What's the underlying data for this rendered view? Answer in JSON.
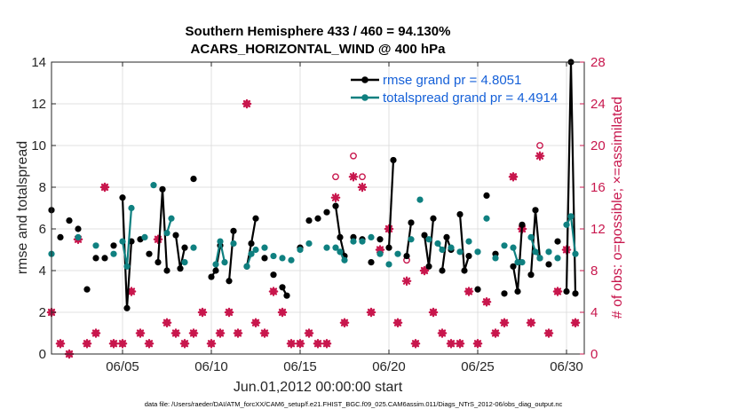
{
  "chart_data": {
    "type": "line",
    "title": "Southern Hemisphere 433 / 460 = 94.130%",
    "subtitle": "ACARS_HORIZONTAL_WIND @ 400 hPa",
    "xlabel": "Jun.01,2012 00:00:00 start",
    "ylabel": "rmse and totalspread",
    "ylabel_right": "# of obs: o=possible; ×=assimilated",
    "xlim": [
      1,
      31
    ],
    "ylim": [
      0,
      14
    ],
    "ylim_right": [
      0,
      28
    ],
    "grid": true,
    "x_ticks": [
      5,
      10,
      15,
      20,
      25,
      30
    ],
    "x_tick_labels": [
      "06/05",
      "06/10",
      "06/15",
      "06/20",
      "06/25",
      "06/30"
    ],
    "y_ticks": [
      0,
      2,
      4,
      6,
      8,
      10,
      12,
      14
    ],
    "y_tick_labels": [
      "0",
      "2",
      "4",
      "6",
      "8",
      "10",
      "12",
      "14"
    ],
    "y_ticks_right": [
      0,
      4,
      8,
      12,
      16,
      20,
      24,
      28
    ],
    "y_tick_labels_right": [
      "0",
      "4",
      "8",
      "12",
      "16",
      "20",
      "24",
      "28"
    ],
    "legend_position": "top-right",
    "series": [
      {
        "name": "rmse grand pr = 4.8051",
        "color": "#000000",
        "marker": "filled-circle",
        "x": [
          1.0,
          1.5,
          2.0,
          2.5,
          3.0,
          3.5,
          4.0,
          4.5,
          5.0,
          5.25,
          5.5,
          6.0,
          6.5,
          7.0,
          7.25,
          7.5,
          8.0,
          8.25,
          8.5,
          9.0,
          10.0,
          10.25,
          10.5,
          11.0,
          11.25,
          12.0,
          12.25,
          12.5,
          13.0,
          13.5,
          14.0,
          14.25,
          15.0,
          15.5,
          16.0,
          16.5,
          17.0,
          17.25,
          17.5,
          18.0,
          18.5,
          19.0,
          19.5,
          20.0,
          20.25,
          21.0,
          21.25,
          22.0,
          22.25,
          22.5,
          23.0,
          23.25,
          23.5,
          24.0,
          24.25,
          24.5,
          25.0,
          25.5,
          26.0,
          26.5,
          27.0,
          27.25,
          27.5,
          28.0,
          28.25,
          28.5,
          29.0,
          29.5,
          30.0,
          30.25,
          30.5
        ],
        "values": [
          6.9,
          5.6,
          6.4,
          6.0,
          3.1,
          4.6,
          4.6,
          5.2,
          7.5,
          2.2,
          5.4,
          5.5,
          4.8,
          4.4,
          7.9,
          4.0,
          5.7,
          4.1,
          5.1,
          8.4,
          3.7,
          4.0,
          5.2,
          3.5,
          5.9,
          4.2,
          5.3,
          6.5,
          4.6,
          3.8,
          3.2,
          2.8,
          5.1,
          6.4,
          6.5,
          6.8,
          7.1,
          5.6,
          4.7,
          5.6,
          5.5,
          4.4,
          5.5,
          5.1,
          9.3,
          4.7,
          6.3,
          5.7,
          4.2,
          6.5,
          4.0,
          5.6,
          5.0,
          6.7,
          4.0,
          4.7,
          3.1,
          7.6,
          4.8,
          2.9,
          4.2,
          3.0,
          6.2,
          3.8,
          6.9,
          4.6,
          4.3,
          5.4,
          3.0,
          14.0,
          2.9
        ]
      },
      {
        "name": "totalspread grand pr = 4.4914",
        "color": "#0f8080",
        "marker": "filled-circle",
        "x": [
          1.0,
          2.5,
          3.5,
          4.5,
          5.0,
          5.25,
          5.5,
          6.25,
          6.75,
          7.5,
          7.75,
          8.5,
          9.0,
          10.25,
          10.5,
          10.75,
          11.25,
          12.0,
          12.25,
          12.5,
          13.0,
          13.5,
          14.0,
          14.5,
          15.0,
          15.5,
          16.5,
          17.0,
          17.25,
          17.5,
          18.0,
          18.5,
          19.0,
          19.5,
          20.0,
          20.5,
          21.25,
          21.75,
          22.25,
          22.75,
          23.0,
          23.5,
          24.0,
          24.5,
          25.0,
          25.5,
          26.0,
          26.5,
          27.0,
          27.25,
          27.5,
          28.0,
          28.25,
          28.5,
          29.0,
          29.5,
          30.0,
          30.25,
          30.5
        ],
        "values": [
          4.8,
          5.6,
          5.2,
          4.8,
          5.4,
          4.2,
          7.0,
          5.6,
          8.1,
          5.8,
          6.5,
          4.4,
          5.1,
          4.3,
          5.4,
          4.4,
          5.3,
          4.2,
          4.8,
          5.0,
          5.1,
          4.7,
          4.6,
          4.5,
          5.0,
          5.3,
          5.1,
          5.1,
          4.9,
          4.5,
          5.4,
          5.4,
          5.6,
          4.8,
          4.3,
          4.8,
          5.5,
          7.4,
          5.5,
          5.3,
          5.0,
          5.1,
          4.9,
          5.4,
          4.9,
          6.5,
          4.6,
          5.2,
          5.1,
          4.4,
          4.4,
          5.6,
          4.9,
          4.6,
          4.9,
          4.6,
          6.2,
          6.6,
          4.8
        ]
      },
      {
        "name": "obs possible",
        "axis": "right",
        "color": "#c8174d",
        "marker": "open-circle",
        "x": [
          1.0,
          1.5,
          2.0,
          2.5,
          3.0,
          3.5,
          4.0,
          4.5,
          5.0,
          5.5,
          6.0,
          6.5,
          7.0,
          7.5,
          8.0,
          8.5,
          9.0,
          9.5,
          10.0,
          10.5,
          11.0,
          11.5,
          12.0,
          12.5,
          13.0,
          13.5,
          14.0,
          14.5,
          15.0,
          15.5,
          16.0,
          16.5,
          17.0,
          17.5,
          18.0,
          18.5,
          19.0,
          19.5,
          20.0,
          20.5,
          21.0,
          21.5,
          22.0,
          22.5,
          23.0,
          23.5,
          24.0,
          24.5,
          25.0,
          25.5,
          26.0,
          26.5,
          27.0,
          27.5,
          28.0,
          28.5,
          29.0,
          29.5,
          30.0,
          30.5
        ],
        "values": [
          4,
          1,
          0,
          11,
          1,
          2,
          16,
          1,
          1,
          6,
          2,
          1,
          11,
          3,
          2,
          1,
          2,
          4,
          1,
          2,
          4,
          2,
          24,
          3,
          2,
          6,
          4,
          1,
          1,
          2,
          1,
          1,
          17,
          3,
          19,
          17,
          4,
          10,
          12,
          3,
          9,
          1,
          8,
          4,
          2,
          1,
          1,
          6,
          1,
          5,
          2,
          3,
          17,
          12,
          3,
          20,
          2,
          6,
          10,
          3
        ]
      },
      {
        "name": "obs assimilated",
        "axis": "right",
        "color": "#c8174d",
        "marker": "asterisk",
        "x": [
          1.0,
          1.5,
          2.0,
          2.5,
          3.0,
          3.5,
          4.0,
          4.5,
          5.0,
          5.5,
          6.0,
          6.5,
          7.0,
          7.5,
          8.0,
          8.5,
          9.0,
          9.5,
          10.0,
          10.5,
          11.0,
          11.5,
          12.0,
          12.5,
          13.0,
          13.5,
          14.0,
          14.5,
          15.0,
          15.5,
          16.0,
          16.5,
          17.0,
          17.5,
          18.0,
          18.5,
          19.0,
          19.5,
          20.0,
          20.5,
          21.0,
          21.5,
          22.0,
          22.5,
          23.0,
          23.5,
          24.0,
          24.5,
          25.0,
          25.5,
          26.0,
          26.5,
          27.0,
          27.5,
          28.0,
          28.5,
          29.0,
          29.5,
          30.0,
          30.5
        ],
        "values": [
          4,
          1,
          0,
          11,
          1,
          2,
          16,
          1,
          1,
          6,
          2,
          1,
          11,
          3,
          2,
          1,
          2,
          4,
          1,
          2,
          4,
          2,
          24,
          3,
          2,
          6,
          4,
          1,
          1,
          2,
          1,
          1,
          15,
          3,
          17,
          16,
          4,
          10,
          12,
          3,
          7,
          1,
          8,
          4,
          2,
          1,
          1,
          6,
          1,
          5,
          2,
          3,
          17,
          12,
          3,
          19,
          2,
          6,
          10,
          3
        ]
      }
    ],
    "footnote": "data file: /Users/raeder/DAI/ATM_forcXX/CAM6_setup/f.e21.FHIST_BGC.f09_025.CAM6assim.011/Diags_NTrS_2012-06/obs_diag_output.nc"
  }
}
